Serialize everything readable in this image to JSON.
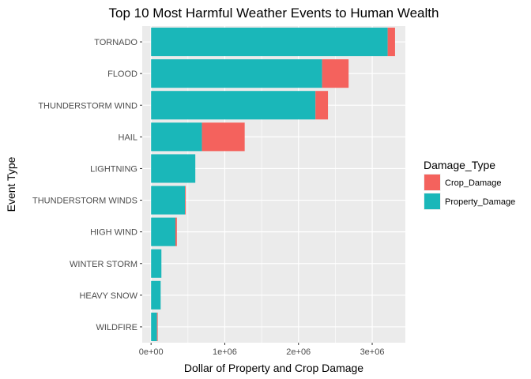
{
  "chart_data": {
    "type": "bar",
    "orientation": "horizontal",
    "stacked": true,
    "title": "Top 10 Most Harmful Weather Events to Human Wealth",
    "xlabel": "Dollar of Property and Crop Damage",
    "ylabel": "Event Type",
    "categories": [
      "TORNADO",
      "FLOOD",
      "THUNDERSTORM WIND",
      "HAIL",
      "LIGHTNING",
      "THUNDERSTORM WINDS",
      "HIGH WIND",
      "WINTER STORM",
      "HEAVY SNOW",
      "WILDFIRE"
    ],
    "series": [
      {
        "name": "Property_Damage",
        "color": "#1ab7b9",
        "values": [
          3210000,
          2320000,
          2230000,
          690000,
          600000,
          460000,
          330000,
          140000,
          130000,
          80000
        ]
      },
      {
        "name": "Crop_Damage",
        "color": "#f4625d",
        "values": [
          100000,
          360000,
          170000,
          580000,
          0,
          10000,
          20000,
          0,
          0,
          10000
        ]
      }
    ],
    "xlim": [
      -120000,
      3450000
    ],
    "xticks": [
      0,
      1000000,
      2000000,
      3000000
    ],
    "xtick_labels": [
      "0e+00",
      "1e+06",
      "2e+06",
      "3e+06"
    ],
    "grid": true,
    "legend": {
      "title": "Damage_Type",
      "placement": "right",
      "entries": [
        {
          "name": "Crop_Damage",
          "color": "#f4625d"
        },
        {
          "name": "Property_Damage",
          "color": "#1ab7b9"
        }
      ]
    },
    "panel_background": "#ebebeb",
    "grid_color": "#ffffff"
  }
}
